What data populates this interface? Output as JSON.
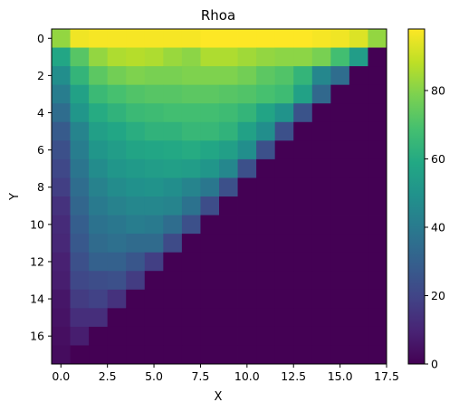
{
  "chart_data": {
    "type": "heatmap",
    "title": "Rhoa",
    "xlabel": "X",
    "ylabel": "Y",
    "grid": false,
    "colormap": "viridis",
    "x_ticks": [
      "0.0",
      "2.5",
      "5.0",
      "7.5",
      "10.0",
      "12.5",
      "15.0",
      "17.5"
    ],
    "x_tick_values": [
      0,
      2.5,
      5,
      7.5,
      10,
      12.5,
      15,
      17.5
    ],
    "y_ticks": [
      "0",
      "2",
      "4",
      "6",
      "8",
      "10",
      "12",
      "14",
      "16"
    ],
    "y_tick_values": [
      0,
      2,
      4,
      6,
      8,
      10,
      12,
      14,
      16
    ],
    "xlim": [
      -0.5,
      17.5
    ],
    "ylim": [
      17.5,
      -0.5
    ],
    "colorbar": {
      "range": [
        0,
        98
      ],
      "ticks": [
        "0",
        "20",
        "40",
        "60",
        "80"
      ],
      "tick_values": [
        0,
        20,
        40,
        60,
        80
      ]
    },
    "values": [
      [
        82,
        96,
        97,
        97,
        97,
        97,
        97,
        97,
        98,
        98,
        98,
        98,
        98,
        98,
        97,
        96,
        93,
        82
      ],
      [
        58,
        72,
        82,
        86,
        87,
        86,
        83,
        81,
        86,
        86,
        84,
        82,
        81,
        81,
        78,
        68,
        54,
        0
      ],
      [
        48,
        64,
        73,
        77,
        79,
        78,
        78,
        79,
        79,
        79,
        77,
        73,
        71,
        64,
        45,
        35,
        0,
        0
      ],
      [
        41,
        56,
        66,
        69,
        71,
        72,
        72,
        73,
        73,
        72,
        71,
        69,
        67,
        56,
        33,
        0,
        0,
        0
      ],
      [
        35,
        51,
        60,
        63,
        66,
        67,
        68,
        68,
        68,
        67,
        64,
        57,
        50,
        25,
        0,
        0,
        0,
        0
      ],
      [
        28,
        44,
        55,
        58,
        61,
        63,
        63,
        65,
        65,
        63,
        56,
        48,
        24,
        0,
        0,
        0,
        0,
        0
      ],
      [
        24,
        41,
        51,
        54,
        57,
        58,
        59,
        60,
        58,
        55,
        48,
        24,
        0,
        0,
        0,
        0,
        0,
        0
      ],
      [
        21,
        38,
        47,
        51,
        53,
        54,
        55,
        54,
        51,
        45,
        24,
        0,
        0,
        0,
        0,
        0,
        0,
        0
      ],
      [
        18,
        35,
        43,
        47,
        49,
        50,
        48,
        44,
        39,
        24,
        0,
        0,
        0,
        0,
        0,
        0,
        0,
        0
      ],
      [
        14,
        32,
        40,
        43,
        45,
        45,
        44,
        37,
        23,
        0,
        0,
        0,
        0,
        0,
        0,
        0,
        0,
        0
      ],
      [
        12,
        29,
        37,
        39,
        41,
        40,
        35,
        24,
        0,
        0,
        0,
        0,
        0,
        0,
        0,
        0,
        0,
        0
      ],
      [
        11,
        27,
        34,
        36,
        34,
        34,
        22,
        0,
        0,
        0,
        0,
        0,
        0,
        0,
        0,
        0,
        0,
        0
      ],
      [
        9,
        24,
        30,
        30,
        26,
        18,
        0,
        0,
        0,
        0,
        0,
        0,
        0,
        0,
        0,
        0,
        0,
        0
      ],
      [
        8,
        21,
        23,
        24,
        17,
        0,
        0,
        0,
        0,
        0,
        0,
        0,
        0,
        0,
        0,
        0,
        0,
        0
      ],
      [
        6,
        17,
        19,
        14,
        0,
        0,
        0,
        0,
        0,
        0,
        0,
        0,
        0,
        0,
        0,
        0,
        0,
        0
      ],
      [
        5,
        13,
        13,
        0,
        0,
        0,
        0,
        0,
        0,
        0,
        0,
        0,
        0,
        0,
        0,
        0,
        0,
        0
      ],
      [
        4,
        8,
        0,
        0,
        0,
        0,
        0,
        0,
        0,
        0,
        0,
        0,
        0,
        0,
        0,
        0,
        0,
        0
      ],
      [
        3,
        0,
        0,
        0,
        0,
        0,
        0,
        0,
        0,
        0,
        0,
        0,
        0,
        0,
        0,
        0,
        0,
        0
      ]
    ]
  }
}
